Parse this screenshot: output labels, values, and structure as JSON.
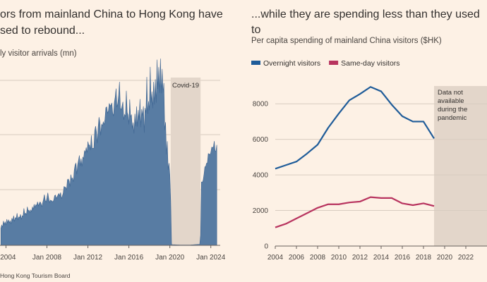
{
  "left": {
    "title_line1": "ors from mainland China to Hong Kong have",
    "title_line2": "sed to rebound...",
    "subtitle": "ly visitor arrivals (mn)",
    "shade_label": "Covid-19",
    "source": "Hong Kong Tourism Board",
    "fill_color": "#587ca3",
    "shade_color": "#e3d6ca"
  },
  "right": {
    "title": "...while they are spending less than they used to",
    "subtitle": "Per capita spending of mainland China visitors ($HK)",
    "annotation": [
      "Data not",
      "available",
      "during the",
      "pandemic"
    ],
    "shade_color": "#e3d6ca"
  },
  "chart_data": [
    {
      "type": "area",
      "title": "",
      "ylabel": "",
      "x_ticks": [
        "2004",
        "Jan 2008",
        "Jan 2012",
        "Jan 2016",
        "Jan 2020",
        "Jan 2024"
      ],
      "x_range": [
        "2003-06",
        "2024-12"
      ],
      "annotation_period": {
        "label": "Covid-19",
        "start": "2020-02",
        "end": "2023-01"
      },
      "series": [
        {
          "points": [
            [
              "2003-07",
              0.55
            ],
            [
              "2004-01",
              0.65
            ],
            [
              "2004-07",
              0.72
            ],
            [
              "2005-01",
              0.78
            ],
            [
              "2005-07",
              0.85
            ],
            [
              "2006-01",
              0.95
            ],
            [
              "2006-07",
              1.05
            ],
            [
              "2007-01",
              1.15
            ],
            [
              "2007-07",
              1.25
            ],
            [
              "2008-01",
              1.35
            ],
            [
              "2008-07",
              1.3
            ],
            [
              "2009-01",
              1.4
            ],
            [
              "2009-07",
              1.5
            ],
            [
              "2010-01",
              1.75
            ],
            [
              "2010-07",
              2.0
            ],
            [
              "2011-01",
              2.3
            ],
            [
              "2011-07",
              2.55
            ],
            [
              "2012-01",
              2.8
            ],
            [
              "2012-07",
              3.0
            ],
            [
              "2013-01",
              3.3
            ],
            [
              "2013-07",
              3.6
            ],
            [
              "2014-01",
              3.9
            ],
            [
              "2014-07",
              4.1
            ],
            [
              "2015-01",
              4.2
            ],
            [
              "2015-07",
              3.95
            ],
            [
              "2016-01",
              3.75
            ],
            [
              "2016-07",
              3.55
            ],
            [
              "2017-01",
              3.7
            ],
            [
              "2017-07",
              3.85
            ],
            [
              "2018-01",
              4.2
            ],
            [
              "2018-07",
              4.5
            ],
            [
              "2019-01",
              4.8
            ],
            [
              "2019-06",
              4.6
            ],
            [
              "2019-09",
              2.7
            ],
            [
              "2019-12",
              2.3
            ],
            [
              "2020-01",
              2.1
            ],
            [
              "2020-03",
              0.02
            ],
            [
              "2021-01",
              0.01
            ],
            [
              "2022-01",
              0.01
            ],
            [
              "2022-12",
              0.03
            ],
            [
              "2023-01",
              0.3
            ],
            [
              "2023-02",
              1.6
            ],
            [
              "2023-06",
              2.3
            ],
            [
              "2023-12",
              2.6
            ],
            [
              "2024-03",
              2.8
            ],
            [
              "2024-08",
              3.0
            ]
          ]
        }
      ]
    },
    {
      "type": "line",
      "title": "",
      "ylabel": "",
      "xlim": [
        2004,
        2023
      ],
      "ylim": [
        0,
        9000
      ],
      "x_ticks": [
        2004,
        2006,
        2008,
        2010,
        2012,
        2014,
        2016,
        2018,
        2020,
        2022
      ],
      "y_ticks": [
        0,
        2000,
        4000,
        6000,
        8000
      ],
      "grid": true,
      "legend": "top-left",
      "shaded_range": [
        2019,
        2023
      ],
      "series": [
        {
          "name": "Overnight visitors",
          "color": "#1f5c99",
          "x": [
            2004,
            2005,
            2006,
            2007,
            2008,
            2009,
            2010,
            2011,
            2012,
            2013,
            2014,
            2015,
            2016,
            2017,
            2018,
            2019
          ],
          "y": [
            4350,
            4550,
            4750,
            5200,
            5700,
            6650,
            7450,
            8200,
            8550,
            8950,
            8700,
            7950,
            7300,
            7000,
            7000,
            6050
          ]
        },
        {
          "name": "Same-day visitors",
          "color": "#b8345f",
          "x": [
            2004,
            2005,
            2006,
            2007,
            2008,
            2009,
            2010,
            2011,
            2012,
            2013,
            2014,
            2015,
            2016,
            2017,
            2018,
            2019
          ],
          "y": [
            1050,
            1250,
            1550,
            1850,
            2150,
            2350,
            2350,
            2450,
            2500,
            2750,
            2700,
            2700,
            2400,
            2300,
            2400,
            2250
          ]
        }
      ]
    }
  ]
}
